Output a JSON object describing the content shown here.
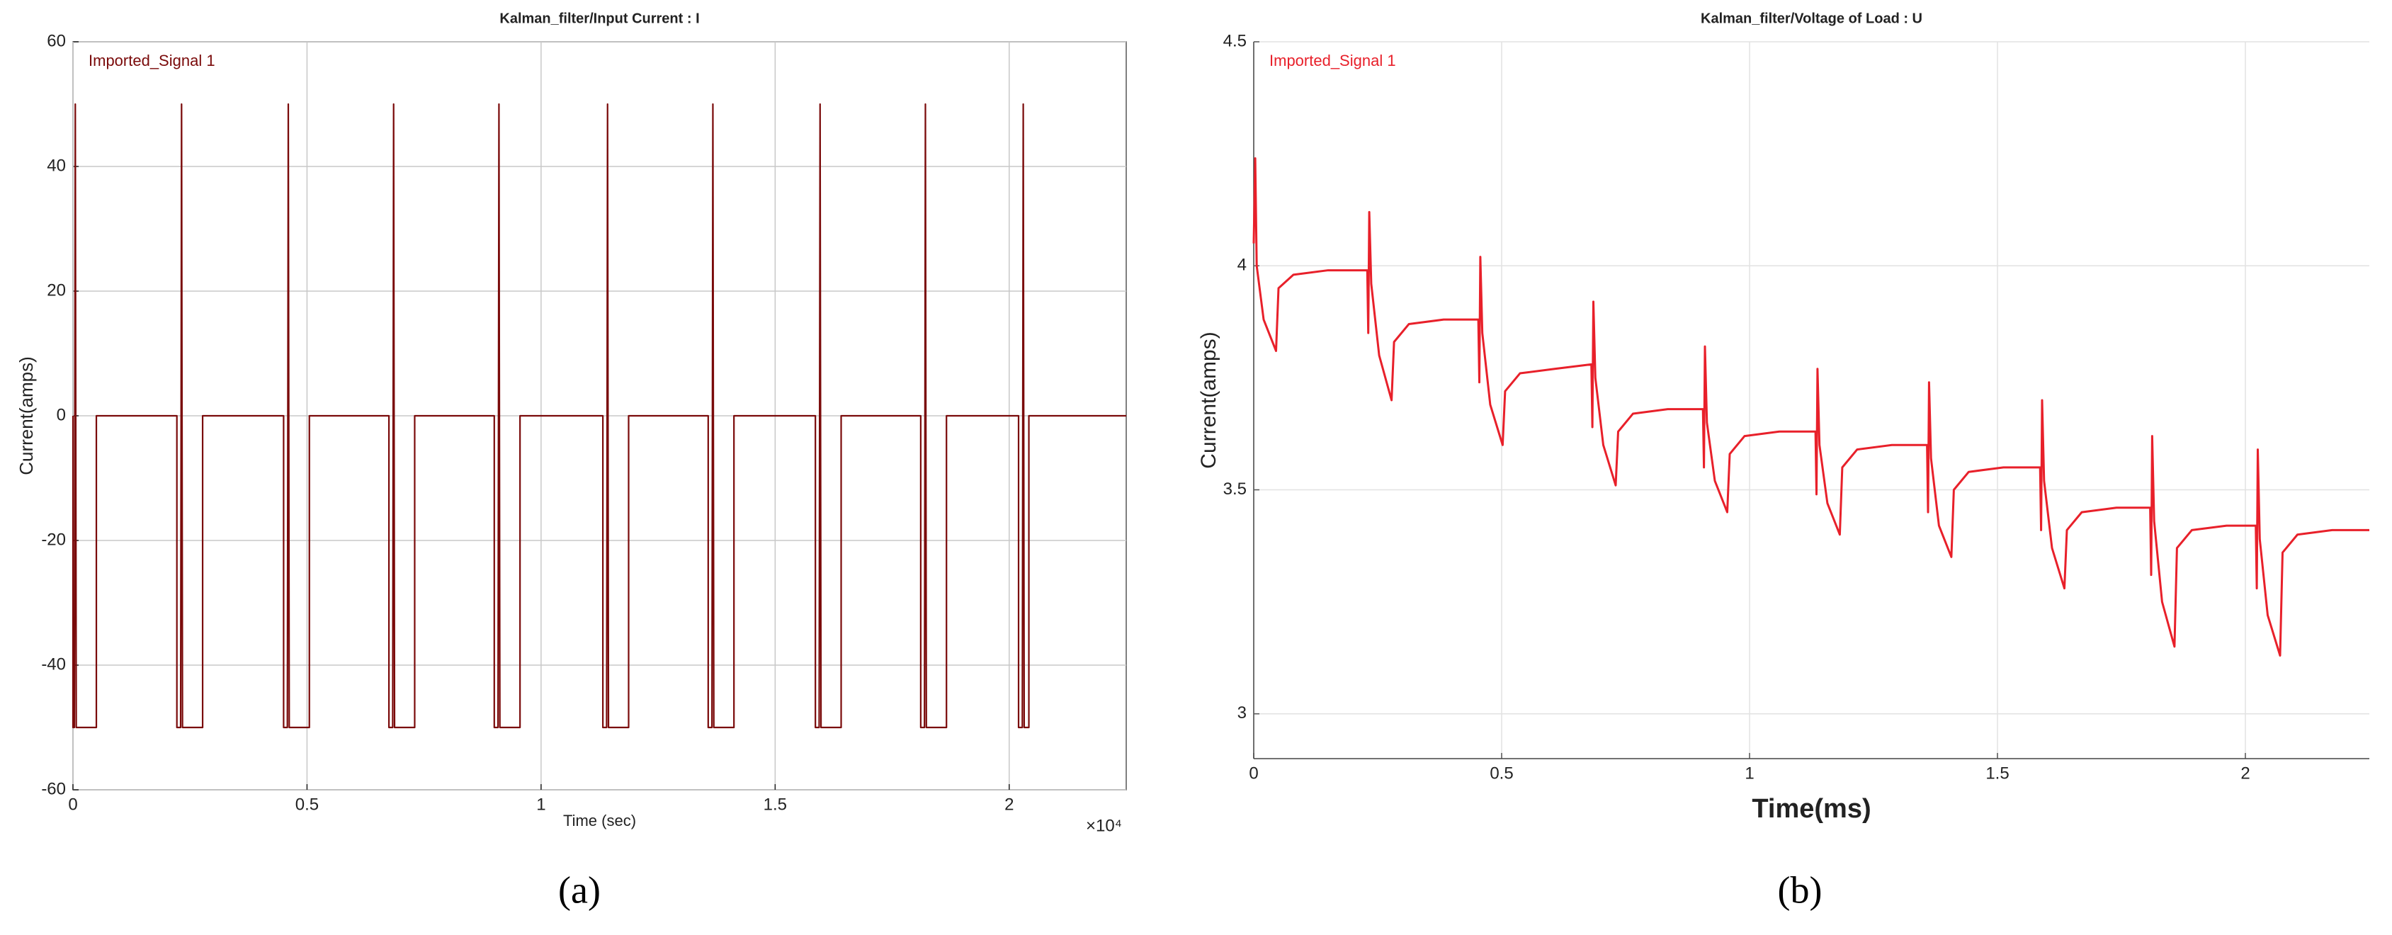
{
  "chart_data": [
    {
      "type": "line",
      "title": "Kalman_filter/Input Current : I",
      "x_label": "Time (sec)",
      "y_label": "Current(amps)",
      "x_exponent": "×10⁴",
      "panel_label": "(a)",
      "xlim": [
        0,
        2.25
      ],
      "ylim": [
        -60,
        60
      ],
      "xticks": [
        0,
        0.5,
        1,
        1.5,
        2
      ],
      "yticks": [
        -60,
        -40,
        -20,
        0,
        20,
        40,
        60
      ],
      "grid": true,
      "x": [
        0,
        0,
        0.003,
        0.005,
        0.007,
        0.05,
        0.05,
        0.222,
        0.222,
        0.23,
        0.232,
        0.234,
        0.277,
        0.277,
        0.45,
        0.45,
        0.458,
        0.46,
        0.462,
        0.505,
        0.505,
        0.675,
        0.675,
        0.683,
        0.685,
        0.687,
        0.73,
        0.73,
        0.9,
        0.9,
        0.908,
        0.91,
        0.912,
        0.955,
        0.955,
        1.132,
        1.132,
        1.14,
        1.142,
        1.144,
        1.187,
        1.187,
        1.357,
        1.357,
        1.365,
        1.367,
        1.369,
        1.412,
        1.412,
        1.586,
        1.586,
        1.594,
        1.596,
        1.598,
        1.641,
        1.641,
        1.811,
        1.811,
        1.819,
        1.821,
        1.823,
        1.866,
        1.866,
        2.02,
        2.02,
        2.028,
        2.03,
        2.032,
        2.042,
        2.042,
        2.25
      ],
      "series": [
        {
          "name": "Imported_Signal 1",
          "color": "#7a0a0a",
          "values": [
            0,
            -50,
            -50,
            50,
            -50,
            -50,
            0,
            0,
            -50,
            -50,
            50,
            -50,
            -50,
            0,
            0,
            -50,
            -50,
            50,
            -50,
            -50,
            0,
            0,
            -50,
            -50,
            50,
            -50,
            -50,
            0,
            0,
            -50,
            -50,
            50,
            -50,
            -50,
            0,
            0,
            -50,
            -50,
            50,
            -50,
            -50,
            0,
            0,
            -50,
            -50,
            50,
            -50,
            -50,
            0,
            0,
            -50,
            -50,
            50,
            -50,
            -50,
            0,
            0,
            -50,
            -50,
            50,
            -50,
            -50,
            0,
            0,
            -50,
            -50,
            50,
            -50,
            -50,
            0,
            0
          ]
        }
      ]
    },
    {
      "type": "line",
      "title": "Kalman_filter/Voltage of Load : U",
      "x_label": "Time(ms)",
      "y_label": "Current(amps)",
      "panel_label": "(b)",
      "xlim": [
        0,
        2.25
      ],
      "ylim": [
        2.9,
        4.5
      ],
      "xticks": [
        0,
        0.5,
        1,
        1.5,
        2
      ],
      "yticks": [
        3,
        3.5,
        4,
        4.5
      ],
      "grid": true,
      "x": [
        0,
        0.003,
        0.006,
        0.02,
        0.045,
        0.05,
        0.08,
        0.15,
        0.229,
        0.231,
        0.233,
        0.237,
        0.253,
        0.278,
        0.283,
        0.313,
        0.383,
        0.453,
        0.455,
        0.457,
        0.461,
        0.477,
        0.502,
        0.507,
        0.537,
        0.607,
        0.681,
        0.683,
        0.685,
        0.689,
        0.705,
        0.73,
        0.735,
        0.765,
        0.835,
        0.906,
        0.908,
        0.91,
        0.914,
        0.93,
        0.955,
        0.96,
        0.99,
        1.06,
        1.133,
        1.135,
        1.137,
        1.141,
        1.157,
        1.182,
        1.187,
        1.217,
        1.287,
        1.358,
        1.36,
        1.362,
        1.366,
        1.382,
        1.407,
        1.412,
        1.442,
        1.512,
        1.586,
        1.588,
        1.59,
        1.594,
        1.61,
        1.635,
        1.64,
        1.67,
        1.74,
        1.808,
        1.81,
        1.812,
        1.816,
        1.832,
        1.857,
        1.862,
        1.892,
        1.962,
        2.021,
        2.023,
        2.025,
        2.029,
        2.045,
        2.07,
        2.075,
        2.105,
        2.175,
        2.25
      ],
      "series": [
        {
          "name": "Imported_Signal 1",
          "color": "#e8202a",
          "values": [
            4.05,
            4.24,
            4.0,
            3.88,
            3.81,
            3.95,
            3.98,
            3.99,
            3.99,
            3.85,
            4.12,
            3.96,
            3.8,
            3.7,
            3.83,
            3.87,
            3.88,
            3.88,
            3.74,
            4.02,
            3.85,
            3.69,
            3.6,
            3.72,
            3.76,
            3.77,
            3.78,
            3.64,
            3.92,
            3.75,
            3.6,
            3.51,
            3.63,
            3.67,
            3.68,
            3.68,
            3.55,
            3.82,
            3.65,
            3.52,
            3.45,
            3.58,
            3.62,
            3.63,
            3.63,
            3.49,
            3.77,
            3.6,
            3.47,
            3.4,
            3.55,
            3.59,
            3.6,
            3.6,
            3.45,
            3.74,
            3.57,
            3.42,
            3.35,
            3.5,
            3.54,
            3.55,
            3.55,
            3.41,
            3.7,
            3.52,
            3.37,
            3.28,
            3.41,
            3.45,
            3.46,
            3.46,
            3.31,
            3.62,
            3.43,
            3.25,
            3.15,
            3.37,
            3.41,
            3.42,
            3.42,
            3.28,
            3.59,
            3.39,
            3.22,
            3.13,
            3.36,
            3.4,
            3.41,
            3.41
          ]
        }
      ]
    }
  ]
}
